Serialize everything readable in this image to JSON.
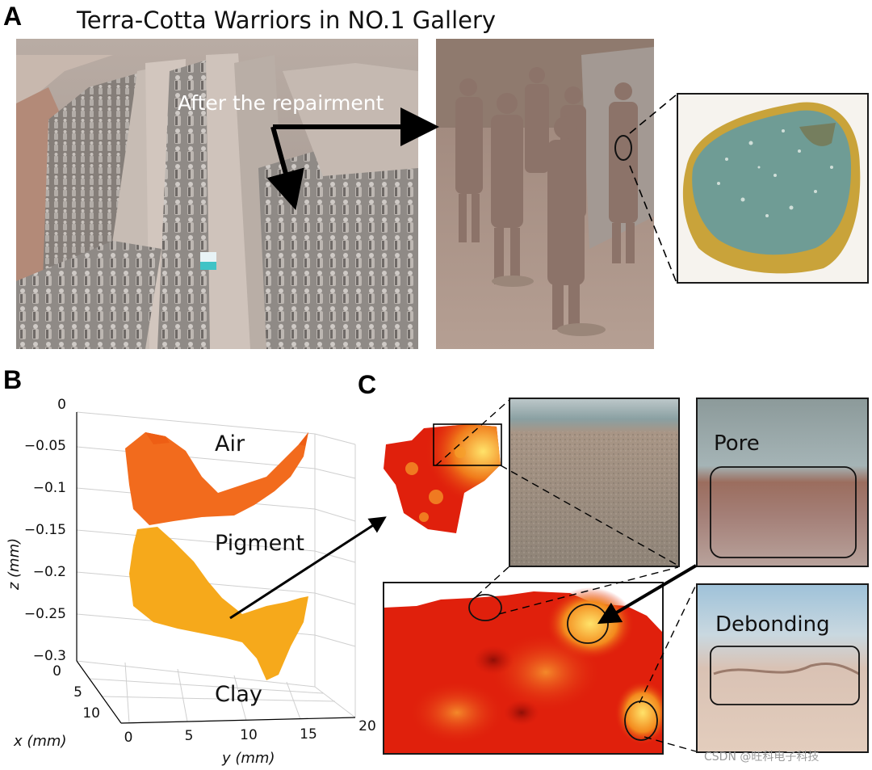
{
  "panels": {
    "a": "A",
    "b": "B",
    "c": "C"
  },
  "panel_a": {
    "title": "Terra-Cotta Warriors in NO.1 Gallery",
    "arrow_label": "After  the repairment"
  },
  "panel_b": {
    "z_axis_label": "z (mm)",
    "x_axis_label": "x (mm)",
    "y_axis_label": "y (mm)",
    "z_ticks": [
      "0",
      "−0.05",
      "−0.1",
      "−0.15",
      "−0.2",
      "−0.25",
      "−0.3"
    ],
    "x_ticks": [
      "0",
      "5",
      "10"
    ],
    "y_ticks": [
      "0",
      "5",
      "10",
      "15",
      "20"
    ],
    "layers": {
      "air": "Air",
      "pigment": "Pigment",
      "clay": "Clay"
    }
  },
  "panel_c": {
    "pore_label": "Pore",
    "debonding_label": "Debonding"
  },
  "watermark": "CSDN @旺科电子科技",
  "colors": {
    "air_layer": "#f26b1d",
    "pigment_layer": "#f6a91b",
    "heatmap_base": "#e0200c",
    "heatmap_hot": "#ffe36a",
    "pigment_green": "#6f9c95",
    "clay_yellow": "#c9a33a"
  }
}
